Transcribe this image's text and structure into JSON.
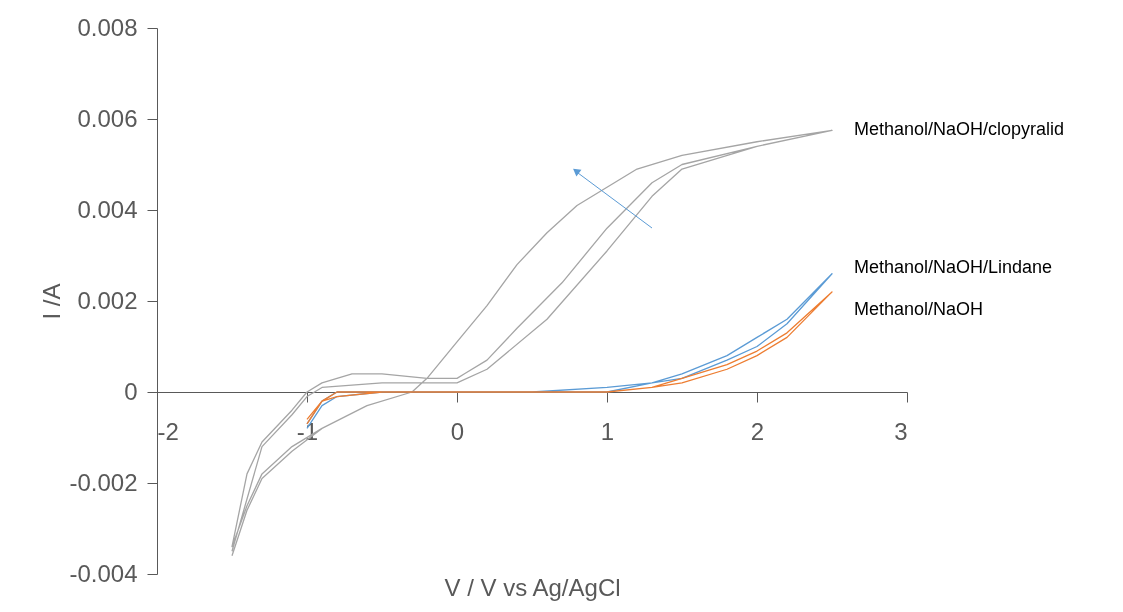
{
  "chart_data": {
    "type": "line",
    "xlabel": "V / V vs Ag/AgCl",
    "ylabel": "I /A",
    "xlim": [
      -2,
      3
    ],
    "xticks": [
      -2,
      -1,
      0,
      1,
      2,
      3
    ],
    "ylim": [
      -0.004,
      0.008
    ],
    "yticks": [
      -0.004,
      -0.002,
      0,
      0.002,
      0.004,
      0.006,
      0.008
    ],
    "grid": false,
    "marker": "none",
    "line_style": "solid",
    "series": [
      {
        "name": "Methanol/NaOH/clopyralid",
        "color": "#a5a5a5",
        "x": [
          -1.5,
          -1.4,
          -1.3,
          -1.1,
          -0.9,
          -0.6,
          -0.3,
          -0.2,
          0,
          0.2,
          0.4,
          0.6,
          0.8,
          1.0,
          1.2,
          1.5,
          2.0,
          2.5,
          2.0,
          1.5,
          1.3,
          1.0,
          0.7,
          0.4,
          0.2,
          0.05,
          0,
          -0.2,
          -0.5,
          -0.7,
          -0.9,
          -1.0,
          -1.1,
          -1.3,
          -1.4,
          -1.5,
          -1.4,
          -1.3,
          -1.1,
          -0.9,
          -0.6,
          -0.3,
          -0.2,
          0,
          0.2,
          0.4,
          0.6,
          0.8,
          1.0,
          1.2,
          1.5,
          2.0,
          2.5,
          2.0,
          1.5,
          1.3,
          1.0,
          0.6,
          0.2,
          0,
          -0.5,
          -0.9,
          -1.0,
          -1.1,
          -1.3,
          -1.5
        ],
        "values": [
          -0.0036,
          -0.0026,
          -0.0019,
          -0.0013,
          -0.0008,
          -0.0003,
          0,
          0.0003,
          0.0011,
          0.0019,
          0.0028,
          0.0035,
          0.0041,
          0.0045,
          0.0049,
          0.0052,
          0.0055,
          0.00575,
          0.0054,
          0.005,
          0.0046,
          0.0036,
          0.0024,
          0.0014,
          0.0007,
          0.0004,
          0.0003,
          0.0003,
          0.0004,
          0.0004,
          0.0002,
          0,
          -0.0004,
          -0.0011,
          -0.0018,
          -0.0034,
          -0.0025,
          -0.0018,
          -0.0012,
          -0.0008,
          -0.0003,
          0,
          0.0003,
          0.0011,
          0.0019,
          0.0028,
          0.0035,
          0.0041,
          0.0045,
          0.0049,
          0.0052,
          0.0055,
          0.00575,
          0.0054,
          0.0049,
          0.0043,
          0.0031,
          0.0016,
          0.0005,
          0.0002,
          0.0002,
          0.0001,
          -0.0001,
          -0.0005,
          -0.0012,
          -0.0035
        ]
      },
      {
        "name": "Methanol/NaOH/Lindane",
        "color": "#5b9bd5",
        "x": [
          -1.0,
          -0.9,
          -0.8,
          -0.5,
          0,
          0.5,
          1.0,
          1.3,
          1.5,
          1.8,
          2.0,
          2.2,
          2.5,
          2.2,
          2.0,
          1.8,
          1.5,
          1.3,
          1.0,
          0.5,
          0,
          -0.5,
          -0.8,
          -0.9,
          -1.0
        ],
        "values": [
          -0.0007,
          -0.0002,
          0,
          0,
          0,
          0,
          0.0001,
          0.0002,
          0.0004,
          0.0008,
          0.0012,
          0.0016,
          0.0026,
          0.0015,
          0.001,
          0.0007,
          0.0003,
          0.0002,
          0,
          0,
          0,
          0,
          -0.0001,
          -0.0003,
          -0.0008
        ]
      },
      {
        "name": "Methanol/NaOH",
        "color": "#ed7d31",
        "x": [
          -1.0,
          -0.9,
          -0.8,
          -0.5,
          0,
          0.5,
          1.0,
          1.3,
          1.5,
          1.8,
          2.0,
          2.2,
          2.5,
          2.2,
          2.0,
          1.8,
          1.5,
          1.3,
          1.0,
          0.5,
          0,
          -0.5,
          -0.8,
          -0.9,
          -1.0
        ],
        "values": [
          -0.0006,
          -0.0002,
          0,
          0,
          0,
          0,
          0,
          0.0001,
          0.0003,
          0.0006,
          0.0009,
          0.0013,
          0.0022,
          0.0012,
          0.0008,
          0.0005,
          0.0002,
          0.0001,
          0,
          0,
          0,
          0,
          -0.0001,
          -0.0002,
          -0.0007
        ]
      }
    ]
  }
}
